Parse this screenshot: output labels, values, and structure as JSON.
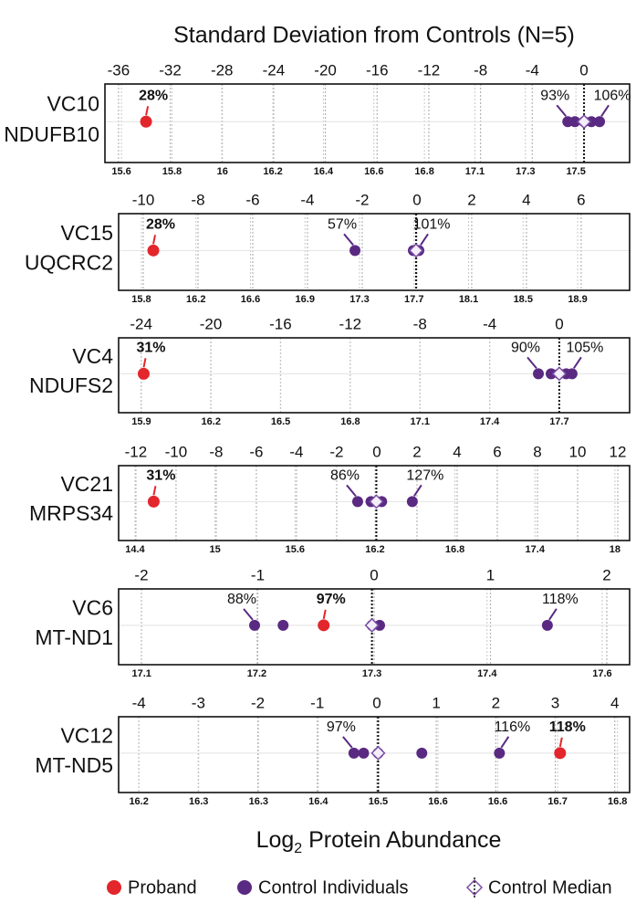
{
  "title": "Standard Deviation from Controls (N=5)",
  "xlabel": [
    "Log",
    "2",
    " Protein Abundance"
  ],
  "legend": [
    {
      "name": "Proband",
      "color": "#e3262b",
      "marker": "circle"
    },
    {
      "name": "Control Individuals",
      "color": "#5a2a82",
      "marker": "circle"
    },
    {
      "name": "Control Median",
      "color": "#7b4fa3",
      "marker": "diamond"
    }
  ],
  "chart_data": [
    {
      "type": "scatter",
      "labels": [
        "VC10",
        "NDUFB10"
      ],
      "xlim": [
        15.55,
        17.68
      ],
      "xticks": [
        {
          "value": 15.617,
          "label": "15.6"
        },
        {
          "value": 15.822,
          "label": "15.8"
        },
        {
          "value": 16.027,
          "label": "16"
        },
        {
          "value": 16.232,
          "label": "16.2"
        },
        {
          "value": 16.437,
          "label": "16.4"
        },
        {
          "value": 16.642,
          "label": "16.6"
        },
        {
          "value": 16.847,
          "label": "16.8"
        },
        {
          "value": 17.052,
          "label": "17.1"
        },
        {
          "value": 17.257,
          "label": "17.3"
        },
        {
          "value": 17.462,
          "label": "17.5"
        }
      ],
      "x2lim": [
        -37.05,
        3.53
      ],
      "x2ticks": [
        -36,
        -32,
        -28,
        -24,
        -20,
        -16,
        -12,
        -8,
        -4,
        0
      ],
      "proband": {
        "value": 15.717,
        "label": "28%"
      },
      "controls": {
        "values": [
          17.429,
          17.458,
          17.495,
          17.525,
          17.558
        ],
        "labels": [
          "93%",
          null,
          null,
          null,
          "106%"
        ]
      },
      "median": 17.495
    },
    {
      "type": "scatter",
      "labels": [
        "VC15",
        "UQCRC2"
      ],
      "xlim": [
        15.624,
        19.232
      ],
      "xticks": [
        {
          "value": 15.785,
          "label": "15.8"
        },
        {
          "value": 16.17,
          "label": "16.2"
        },
        {
          "value": 16.555,
          "label": "16.6"
        },
        {
          "value": 16.94,
          "label": "16.9"
        },
        {
          "value": 17.325,
          "label": "17.3"
        },
        {
          "value": 17.71,
          "label": "17.7"
        },
        {
          "value": 18.095,
          "label": "18.1"
        },
        {
          "value": 18.48,
          "label": "18.5"
        },
        {
          "value": 18.865,
          "label": "18.9"
        }
      ],
      "x2lim": [
        -10.9,
        7.77
      ],
      "x2ticks": [
        -10,
        -8,
        -6,
        -4,
        -2,
        0,
        2,
        4,
        6
      ],
      "proband": {
        "value": 15.869,
        "label": "28%"
      },
      "controls": {
        "values": [
          17.293,
          17.705,
          17.724,
          17.731,
          17.744
        ],
        "labels": [
          "57%",
          null,
          null,
          null,
          "101%"
        ]
      },
      "median": 17.724
    },
    {
      "type": "scatter",
      "labels": [
        "VC4",
        "NDUFS2"
      ],
      "xlim": [
        15.802,
        18.003
      ],
      "xticks": [
        15.9,
        16.2,
        16.5,
        16.8,
        17.1,
        17.4,
        17.7
      ],
      "x2lim": [
        -25.29,
        4.03
      ],
      "x2ticks": [
        -24,
        -20,
        -16,
        -12,
        -8,
        -4,
        0
      ],
      "proband": {
        "value": 15.91,
        "label": "31%"
      },
      "controls": {
        "values": [
          17.61,
          17.665,
          17.7,
          17.73,
          17.755
        ],
        "labels": [
          "90%",
          null,
          null,
          null,
          "105%"
        ]
      },
      "median": 17.7
    },
    {
      "type": "scatter",
      "labels": [
        "VC21",
        "MRPS34"
      ],
      "xlim": [
        14.277,
        18.11
      ],
      "xticks": [
        14.4,
        15,
        15.6,
        16.2,
        16.8,
        17.4,
        18
      ],
      "x2lim": [
        -12.86,
        12.59
      ],
      "x2ticks": [
        -12,
        -10,
        -8,
        -6,
        -4,
        -2,
        0,
        2,
        4,
        6,
        8,
        10,
        12
      ],
      "proband": {
        "value": 14.54,
        "label": "31%"
      },
      "controls": {
        "values": [
          16.07,
          16.17,
          16.21,
          16.25,
          16.48
        ],
        "labels": [
          "86%",
          null,
          null,
          null,
          "127%"
        ]
      },
      "median": 16.21
    },
    {
      "type": "scatter",
      "labels": [
        "VC6",
        "MT-ND1"
      ],
      "xlim": [
        17.111,
        17.577
      ],
      "xticks": [
        {
          "value": 17.132,
          "label": "17.1"
        },
        {
          "value": 17.237,
          "label": "17.2"
        },
        {
          "value": 17.342,
          "label": "17.3"
        },
        {
          "value": 17.447,
          "label": "17.4"
        },
        {
          "value": 17.552,
          "label": "17.6"
        }
      ],
      "x2lim": [
        -2.196,
        2.196
      ],
      "x2ticks": [
        -2,
        -1,
        0,
        1,
        2
      ],
      "proband": {
        "value": 17.298,
        "label": "97%"
      },
      "controls": {
        "values": [
          17.235,
          17.261,
          17.342,
          17.349,
          17.502
        ],
        "labels": [
          "88%",
          null,
          null,
          null,
          "118%"
        ]
      },
      "median": 17.342
    },
    {
      "type": "scatter",
      "labels": [
        "VC12",
        "MT-ND5"
      ],
      "xlim": [
        16.175,
        16.807
      ],
      "xticks": [
        {
          "value": 16.2,
          "label": "16.2"
        },
        {
          "value": 16.274,
          "label": "16.3"
        },
        {
          "value": 16.348,
          "label": "16.3"
        },
        {
          "value": 16.422,
          "label": "16.4"
        },
        {
          "value": 16.496,
          "label": "16.5"
        },
        {
          "value": 16.57,
          "label": "16.6"
        },
        {
          "value": 16.644,
          "label": "16.6"
        },
        {
          "value": 16.718,
          "label": "16.7"
        },
        {
          "value": 16.792,
          "label": "16.8"
        }
      ],
      "x2lim": [
        -4.34,
        4.25
      ],
      "x2ticks": [
        -4,
        -3,
        -2,
        -1,
        0,
        1,
        2,
        3,
        4
      ],
      "proband": {
        "value": 16.721,
        "label": "118%"
      },
      "controls": {
        "values": [
          16.466,
          16.478,
          16.496,
          16.55,
          16.646
        ],
        "labels": [
          "97%",
          null,
          null,
          null,
          "116%"
        ]
      },
      "median": 16.496
    }
  ]
}
